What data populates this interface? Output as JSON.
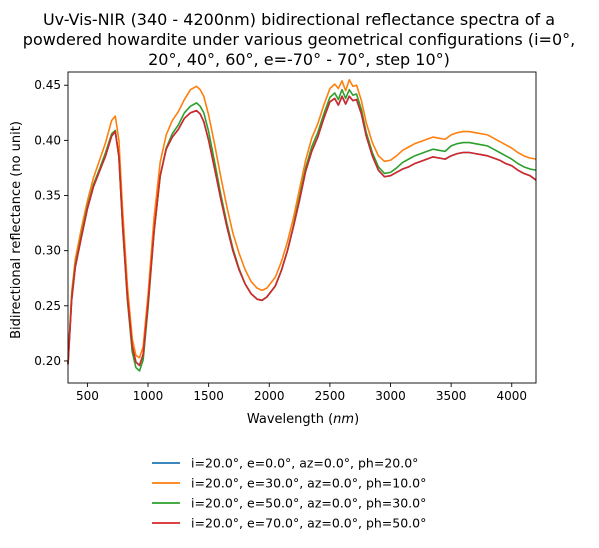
{
  "chart_data": {
    "type": "line",
    "title": "Uv-Vis-NIR (340 - 4200nm) bidirectional reflectance spectra of a powdered howardite under various geometrical configurations (i=0°, 20°, 40°, 60°, e=-70° - 70°, step 10°)",
    "title_lines": [
      "Uv-Vis-NIR (340 - 4200nm) bidirectional reflectance spectra of a",
      "powdered howardite under various geometrical configurations (i=0°,",
      "20°, 40°, 60°, e=-70° - 70°, step 10°)"
    ],
    "xlabel": "Wavelength (nm)",
    "xlabel_prefix": "Wavelength (",
    "xlabel_unit": "nm",
    "xlabel_suffix": ")",
    "ylabel": "Bidirectional reflectance (no unit)",
    "xlim": [
      340,
      4200
    ],
    "ylim": [
      0.18,
      0.462
    ],
    "xticks": [
      500,
      1000,
      1500,
      2000,
      2500,
      3000,
      3500,
      4000
    ],
    "xtick_labels": [
      "500",
      "1000",
      "1500",
      "2000",
      "2500",
      "3000",
      "3500",
      "4000"
    ],
    "yticks": [
      0.2,
      0.25,
      0.3,
      0.35,
      0.4,
      0.45
    ],
    "ytick_labels": [
      "0.20",
      "0.25",
      "0.30",
      "0.35",
      "0.40",
      "0.45"
    ],
    "grid": false,
    "legend_position": "below",
    "x": [
      340,
      370,
      400,
      450,
      500,
      550,
      600,
      650,
      700,
      730,
      760,
      790,
      830,
      870,
      900,
      930,
      960,
      1000,
      1050,
      1100,
      1150,
      1200,
      1250,
      1300,
      1350,
      1400,
      1430,
      1460,
      1500,
      1550,
      1600,
      1650,
      1700,
      1750,
      1800,
      1850,
      1900,
      1940,
      1980,
      2050,
      2100,
      2150,
      2200,
      2250,
      2300,
      2350,
      2400,
      2450,
      2500,
      2540,
      2570,
      2600,
      2630,
      2660,
      2690,
      2720,
      2760,
      2800,
      2850,
      2900,
      2950,
      3000,
      3050,
      3100,
      3150,
      3200,
      3250,
      3300,
      3350,
      3400,
      3450,
      3500,
      3550,
      3600,
      3650,
      3700,
      3750,
      3800,
      3850,
      3900,
      3950,
      4000,
      4050,
      4100,
      4150,
      4200
    ],
    "series": [
      {
        "name": "i=20.0°, e=0.0°, az=0.0°, ph=20.0°",
        "color": "#1f77b4",
        "values": [
          0.197,
          0.255,
          0.285,
          0.312,
          0.338,
          0.358,
          0.372,
          0.386,
          0.404,
          0.408,
          0.385,
          0.325,
          0.258,
          0.213,
          0.199,
          0.196,
          0.206,
          0.252,
          0.318,
          0.368,
          0.392,
          0.403,
          0.41,
          0.42,
          0.425,
          0.427,
          0.424,
          0.417,
          0.4,
          0.374,
          0.347,
          0.322,
          0.3,
          0.283,
          0.27,
          0.261,
          0.256,
          0.255,
          0.258,
          0.268,
          0.282,
          0.3,
          0.322,
          0.346,
          0.372,
          0.39,
          0.403,
          0.42,
          0.435,
          0.438,
          0.432,
          0.44,
          0.433,
          0.44,
          0.436,
          0.437,
          0.424,
          0.404,
          0.386,
          0.373,
          0.367,
          0.368,
          0.371,
          0.374,
          0.376,
          0.379,
          0.381,
          0.383,
          0.385,
          0.384,
          0.383,
          0.386,
          0.388,
          0.389,
          0.389,
          0.388,
          0.387,
          0.386,
          0.384,
          0.382,
          0.379,
          0.377,
          0.373,
          0.37,
          0.368,
          0.364
        ]
      },
      {
        "name": "i=20.0°, e=30.0°, az=0.0°, ph=10.0°",
        "color": "#ff7f0e",
        "values": [
          0.197,
          0.262,
          0.292,
          0.32,
          0.345,
          0.366,
          0.382,
          0.398,
          0.418,
          0.422,
          0.4,
          0.338,
          0.268,
          0.22,
          0.205,
          0.203,
          0.213,
          0.26,
          0.33,
          0.38,
          0.405,
          0.418,
          0.426,
          0.437,
          0.446,
          0.449,
          0.446,
          0.44,
          0.423,
          0.396,
          0.367,
          0.34,
          0.316,
          0.298,
          0.283,
          0.272,
          0.266,
          0.264,
          0.266,
          0.276,
          0.29,
          0.308,
          0.33,
          0.356,
          0.382,
          0.402,
          0.415,
          0.432,
          0.447,
          0.451,
          0.447,
          0.454,
          0.445,
          0.455,
          0.449,
          0.45,
          0.436,
          0.416,
          0.398,
          0.386,
          0.381,
          0.382,
          0.386,
          0.391,
          0.394,
          0.397,
          0.399,
          0.401,
          0.403,
          0.402,
          0.401,
          0.405,
          0.407,
          0.408,
          0.408,
          0.407,
          0.406,
          0.405,
          0.402,
          0.399,
          0.396,
          0.393,
          0.389,
          0.386,
          0.384,
          0.383
        ]
      },
      {
        "name": "i=20.0°, e=50.0°, az=0.0°, ph=30.0°",
        "color": "#2ca02c",
        "values": [
          0.197,
          0.258,
          0.287,
          0.314,
          0.34,
          0.36,
          0.374,
          0.389,
          0.406,
          0.409,
          0.385,
          0.322,
          0.255,
          0.208,
          0.194,
          0.191,
          0.201,
          0.248,
          0.317,
          0.367,
          0.393,
          0.406,
          0.414,
          0.425,
          0.431,
          0.434,
          0.431,
          0.425,
          0.408,
          0.38,
          0.351,
          0.325,
          0.302,
          0.284,
          0.27,
          0.261,
          0.256,
          0.255,
          0.258,
          0.268,
          0.282,
          0.3,
          0.323,
          0.349,
          0.375,
          0.394,
          0.407,
          0.424,
          0.439,
          0.443,
          0.437,
          0.446,
          0.438,
          0.446,
          0.441,
          0.442,
          0.428,
          0.407,
          0.389,
          0.376,
          0.37,
          0.371,
          0.375,
          0.38,
          0.383,
          0.386,
          0.388,
          0.39,
          0.392,
          0.391,
          0.39,
          0.395,
          0.397,
          0.398,
          0.398,
          0.397,
          0.396,
          0.395,
          0.392,
          0.389,
          0.386,
          0.383,
          0.379,
          0.376,
          0.374,
          0.373
        ]
      },
      {
        "name": "i=20.0°, e=70.0°, az=0.0°, ph=50.0°",
        "color": "#d62728",
        "values": [
          0.197,
          0.255,
          0.285,
          0.312,
          0.338,
          0.358,
          0.372,
          0.386,
          0.404,
          0.408,
          0.385,
          0.325,
          0.258,
          0.213,
          0.199,
          0.196,
          0.206,
          0.252,
          0.318,
          0.368,
          0.392,
          0.403,
          0.41,
          0.42,
          0.425,
          0.427,
          0.424,
          0.417,
          0.4,
          0.374,
          0.347,
          0.322,
          0.3,
          0.283,
          0.27,
          0.261,
          0.256,
          0.255,
          0.258,
          0.268,
          0.282,
          0.3,
          0.322,
          0.346,
          0.372,
          0.39,
          0.403,
          0.42,
          0.435,
          0.438,
          0.432,
          0.44,
          0.433,
          0.44,
          0.436,
          0.437,
          0.424,
          0.404,
          0.386,
          0.373,
          0.367,
          0.368,
          0.371,
          0.374,
          0.376,
          0.379,
          0.381,
          0.383,
          0.385,
          0.384,
          0.383,
          0.386,
          0.388,
          0.389,
          0.389,
          0.388,
          0.387,
          0.386,
          0.384,
          0.382,
          0.379,
          0.377,
          0.373,
          0.37,
          0.368,
          0.364
        ]
      }
    ]
  }
}
